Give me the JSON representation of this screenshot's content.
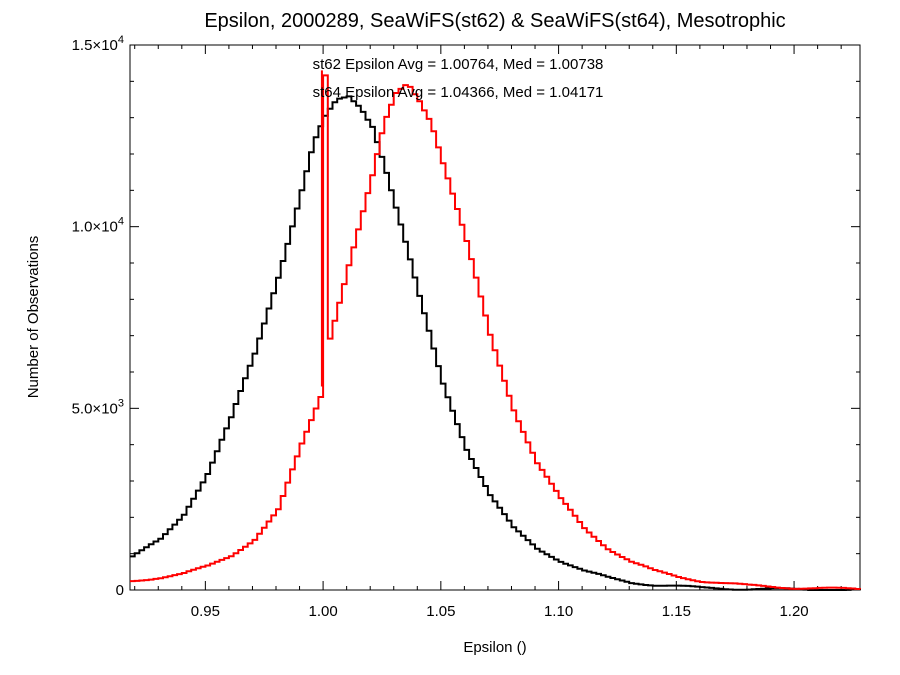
{
  "chart_data": {
    "type": "line",
    "title": "Epsilon, 2000289, SeaWiFS(st62) & SeaWiFS(st64), Mesotrophic",
    "xlabel": "Epsilon ()",
    "ylabel": "Number of Observations",
    "xlim": [
      0.918,
      1.228
    ],
    "ylim": [
      0,
      15000
    ],
    "grid": false,
    "x_ticks": [
      {
        "value": 0.95,
        "label": "0.95"
      },
      {
        "value": 1.0,
        "label": "1.00"
      },
      {
        "value": 1.05,
        "label": "1.05"
      },
      {
        "value": 1.1,
        "label": "1.10"
      },
      {
        "value": 1.15,
        "label": "1.15"
      },
      {
        "value": 1.2,
        "label": "1.20"
      }
    ],
    "y_ticks": [
      {
        "value": 0,
        "mantissa": "0",
        "exponent": ""
      },
      {
        "value": 5000,
        "mantissa": "5.0×10",
        "exponent": "3"
      },
      {
        "value": 10000,
        "mantissa": "1.0×10",
        "exponent": "4"
      },
      {
        "value": 15000,
        "mantissa": "1.5×10",
        "exponent": "4"
      }
    ],
    "annotations": [
      {
        "text": "st62 Epsilon Avg = 1.00764, Med = 1.00738",
        "color": "#000000"
      },
      {
        "text": "st64 Epsilon Avg = 1.04366, Med = 1.04171",
        "color": "#ff0000"
      }
    ],
    "series": [
      {
        "color": "#000000",
        "x": [
          0.918,
          0.93,
          0.94,
          0.95,
          0.96,
          0.97,
          0.98,
          0.99,
          0.995,
          1.0,
          1.005,
          1.01,
          1.015,
          1.02,
          1.025,
          1.03,
          1.04,
          1.05,
          1.06,
          1.07,
          1.08,
          1.09,
          1.1,
          1.11,
          1.12,
          1.13,
          1.14,
          1.15,
          1.16,
          1.18,
          1.2,
          1.228
        ],
        "y": [
          900,
          1400,
          2100,
          3200,
          4700,
          6500,
          8700,
          11000,
          12200,
          12900,
          13400,
          13600,
          13400,
          12900,
          11800,
          10500,
          8000,
          5700,
          3900,
          2600,
          1700,
          1150,
          800,
          520,
          340,
          210,
          140,
          100,
          60,
          30,
          15,
          5
        ]
      },
      {
        "color": "#ff0000",
        "x": [
          0.918,
          0.93,
          0.94,
          0.95,
          0.96,
          0.97,
          0.98,
          0.99,
          0.9995,
          0.9995,
          1.0,
          1.0,
          1.01,
          1.02,
          1.025,
          1.03,
          1.035,
          1.04,
          1.045,
          1.05,
          1.06,
          1.07,
          1.08,
          1.09,
          1.1,
          1.11,
          1.12,
          1.13,
          1.14,
          1.15,
          1.16,
          1.18,
          1.2,
          1.228
        ],
        "y": [
          250,
          350,
          450,
          650,
          950,
          1400,
          2200,
          4000,
          5600,
          14300,
          14300,
          6500,
          9000,
          11300,
          12700,
          13600,
          14000,
          13600,
          13000,
          11800,
          9500,
          7000,
          5000,
          3500,
          2500,
          1700,
          1150,
          780,
          520,
          360,
          250,
          120,
          60,
          20
        ]
      }
    ]
  }
}
